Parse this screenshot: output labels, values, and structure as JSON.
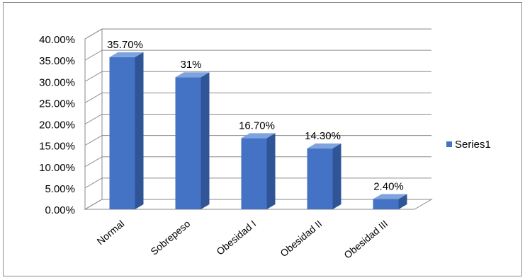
{
  "chart_data": {
    "type": "bar",
    "title": "",
    "xlabel": "",
    "ylabel": "",
    "categories": [
      "Normal",
      "Sobrepeso",
      "Obesidad I",
      "Obesidad II",
      "Obesidad III"
    ],
    "series": [
      {
        "name": "Series1",
        "values": [
          35.7,
          31,
          16.7,
          14.3,
          2.4
        ],
        "data_labels": [
          "35.70%",
          "31%",
          "16.70%",
          "14.30%",
          "2.40%"
        ],
        "color": "#4472C4"
      }
    ],
    "ylim": [
      0,
      40
    ],
    "yticks": [
      "0.00%",
      "5.00%",
      "10.00%",
      "15.00%",
      "20.00%",
      "25.00%",
      "30.00%",
      "35.00%",
      "40.00%"
    ],
    "ytick_values": [
      0,
      5,
      10,
      15,
      20,
      25,
      30,
      35,
      40
    ],
    "grid": true,
    "legend_position": "right",
    "style": "3d-column"
  }
}
